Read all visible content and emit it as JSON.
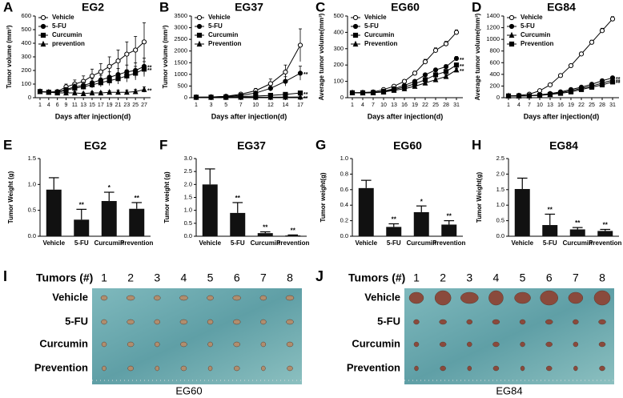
{
  "chart_data": [
    {
      "type": "line",
      "panel": "A",
      "title": "EG2",
      "xlabel": "Days after injection(d)",
      "ylabel": "Tumor volume (mm³)",
      "categories": [
        "1",
        "4",
        "6",
        "9",
        "11",
        "13",
        "15",
        "17",
        "19",
        "21",
        "23",
        "25",
        "27"
      ],
      "ylim": [
        0,
        600
      ],
      "yticks": [
        0,
        100,
        200,
        300,
        400,
        500,
        600
      ],
      "series": [
        {
          "name": "Vehicle",
          "marker": "circle-open",
          "color": "#000",
          "values": [
            45,
            42,
            45,
            80,
            100,
            120,
            160,
            190,
            230,
            270,
            320,
            350,
            410
          ],
          "errors": [
            10,
            10,
            10,
            20,
            30,
            40,
            50,
            60,
            70,
            80,
            90,
            100,
            140
          ]
        },
        {
          "name": "5-FU",
          "marker": "circle",
          "color": "#000",
          "values": [
            45,
            40,
            42,
            60,
            80,
            90,
            110,
            130,
            150,
            170,
            190,
            200,
            230
          ],
          "errors": [
            10,
            10,
            10,
            15,
            20,
            25,
            30,
            35,
            40,
            45,
            50,
            55,
            60
          ],
          "annotation": "**"
        },
        {
          "name": "Curcumin",
          "marker": "square",
          "color": "#000",
          "values": [
            45,
            40,
            40,
            55,
            70,
            80,
            95,
            110,
            125,
            140,
            160,
            180,
            210
          ],
          "errors": [
            10,
            10,
            10,
            15,
            15,
            20,
            25,
            30,
            35,
            40,
            45,
            50,
            55
          ],
          "annotation": "**"
        },
        {
          "name": "prevention",
          "marker": "triangle",
          "color": "#000",
          "values": [
            45,
            40,
            35,
            35,
            35,
            30,
            35,
            35,
            40,
            40,
            40,
            45,
            60
          ],
          "errors": [
            10,
            10,
            10,
            10,
            10,
            10,
            10,
            10,
            10,
            15,
            15,
            15,
            20
          ],
          "annotation": "**"
        }
      ]
    },
    {
      "type": "line",
      "panel": "B",
      "title": "EG37",
      "xlabel": "Days after injection(d)",
      "ylabel": "Tumor volume (mm³)",
      "categories": [
        "1",
        "3",
        "5",
        "7",
        "10",
        "12",
        "14",
        "17"
      ],
      "ylim": [
        0,
        3500
      ],
      "yticks": [
        0,
        500,
        1000,
        1500,
        2000,
        2500,
        3000,
        3500
      ],
      "series": [
        {
          "name": "Vehicle",
          "marker": "circle-open",
          "color": "#000",
          "values": [
            20,
            30,
            60,
            150,
            300,
            600,
            1100,
            2250
          ],
          "errors": [
            5,
            10,
            20,
            50,
            100,
            200,
            300,
            700
          ]
        },
        {
          "name": "5-FU",
          "marker": "circle",
          "color": "#000",
          "values": [
            20,
            25,
            50,
            100,
            200,
            400,
            700,
            1050
          ],
          "errors": [
            5,
            10,
            15,
            30,
            60,
            120,
            200,
            300
          ],
          "annotation": "**"
        },
        {
          "name": "Curcumin",
          "marker": "square",
          "color": "#000",
          "values": [
            20,
            20,
            30,
            50,
            70,
            100,
            140,
            200
          ],
          "errors": [
            5,
            5,
            10,
            15,
            20,
            30,
            40,
            60
          ],
          "annotation": "**"
        },
        {
          "name": "Prevention",
          "marker": "triangle",
          "color": "#000",
          "values": [
            15,
            15,
            15,
            20,
            20,
            20,
            25,
            30
          ],
          "errors": [
            5,
            5,
            5,
            5,
            5,
            5,
            10,
            10
          ],
          "annotation": "**"
        }
      ]
    },
    {
      "type": "line",
      "panel": "C",
      "title": "EG60",
      "xlabel": "Days after injection(d)",
      "ylabel": "Average tumor volume(mm³)",
      "categories": [
        "1",
        "4",
        "7",
        "10",
        "13",
        "16",
        "19",
        "22",
        "25",
        "28",
        "31"
      ],
      "ylim": [
        0,
        500
      ],
      "yticks": [
        0,
        100,
        200,
        300,
        400,
        500
      ],
      "series": [
        {
          "name": "Vehicle",
          "marker": "circle-open",
          "color": "#000",
          "values": [
            30,
            32,
            35,
            50,
            70,
            100,
            150,
            220,
            290,
            330,
            400
          ],
          "errors": [
            3,
            3,
            4,
            5,
            8,
            10,
            12,
            15,
            15,
            15,
            15
          ]
        },
        {
          "name": "5-FU",
          "marker": "circle",
          "color": "#000",
          "values": [
            30,
            30,
            32,
            40,
            55,
            75,
            100,
            140,
            170,
            190,
            240
          ],
          "errors": [
            3,
            3,
            3,
            4,
            5,
            6,
            8,
            10,
            10,
            12,
            12
          ],
          "annotation": "**"
        },
        {
          "name": "Curcumin",
          "marker": "square",
          "color": "#000",
          "values": [
            30,
            30,
            31,
            38,
            50,
            65,
            85,
            110,
            140,
            160,
            200
          ],
          "errors": [
            3,
            3,
            3,
            4,
            5,
            6,
            7,
            8,
            10,
            10,
            12
          ],
          "annotation": "**"
        },
        {
          "name": "Prevention",
          "marker": "triangle",
          "color": "#000",
          "values": [
            30,
            29,
            30,
            35,
            45,
            55,
            70,
            90,
            110,
            130,
            170
          ],
          "errors": [
            3,
            3,
            3,
            4,
            4,
            5,
            6,
            7,
            8,
            10,
            10
          ],
          "annotation": "**"
        }
      ]
    },
    {
      "type": "line",
      "panel": "D",
      "title": "EG84",
      "xlabel": "Days after injection(d)",
      "ylabel": "Average tumor volume(mm³)",
      "categories": [
        "1",
        "4",
        "7",
        "10",
        "13",
        "16",
        "19",
        "22",
        "25",
        "28",
        "31"
      ],
      "ylim": [
        0,
        1400
      ],
      "yticks": [
        0,
        200,
        400,
        600,
        800,
        1000,
        1200,
        1400
      ],
      "series": [
        {
          "name": "Vehicle",
          "marker": "circle-open",
          "color": "#000",
          "values": [
            30,
            40,
            60,
            120,
            220,
            380,
            550,
            750,
            950,
            1150,
            1350
          ],
          "errors": [
            5,
            5,
            8,
            10,
            15,
            20,
            25,
            30,
            35,
            40,
            40
          ]
        },
        {
          "name": "5-FU",
          "marker": "circle",
          "color": "#000",
          "values": [
            30,
            32,
            35,
            50,
            70,
            100,
            140,
            180,
            230,
            290,
            340
          ],
          "errors": [
            5,
            5,
            5,
            8,
            10,
            12,
            15,
            18,
            20,
            22,
            25
          ],
          "annotation": "**"
        },
        {
          "name": "Curcumin",
          "marker": "triangle",
          "color": "#000",
          "values": [
            30,
            30,
            33,
            45,
            60,
            85,
            120,
            160,
            200,
            250,
            300
          ],
          "errors": [
            5,
            5,
            5,
            6,
            8,
            10,
            12,
            15,
            18,
            20,
            22
          ],
          "annotation": "**"
        },
        {
          "name": "Prevention",
          "marker": "square",
          "color": "#000",
          "values": [
            30,
            30,
            32,
            40,
            55,
            75,
            100,
            140,
            180,
            220,
            270
          ],
          "errors": [
            5,
            5,
            5,
            6,
            7,
            9,
            10,
            12,
            15,
            18,
            20
          ],
          "annotation": "**"
        }
      ]
    },
    {
      "type": "bar",
      "panel": "E",
      "title": "EG2",
      "ylabel": "Tumor Weight (g)",
      "color": "#111",
      "categories": [
        "Vehicle",
        "5-FU",
        "Curcumin",
        "Prevention"
      ],
      "values": [
        0.9,
        0.32,
        0.68,
        0.53
      ],
      "errors": [
        0.23,
        0.2,
        0.17,
        0.12
      ],
      "annotations": [
        null,
        "**",
        "*",
        "**"
      ],
      "ylim": [
        0,
        1.5
      ],
      "yticks": [
        {
          "value": 0,
          "label": "0.0"
        },
        0.5,
        {
          "value": 1,
          "label": "1.0"
        },
        1.5
      ]
    },
    {
      "type": "bar",
      "panel": "F",
      "title": "EG37",
      "ylabel": "Tumor weight (g)",
      "color": "#111",
      "categories": [
        "Vehicle",
        "5-FU",
        "Curcumin",
        "Prevention"
      ],
      "values": [
        2.0,
        0.9,
        0.12,
        0.03
      ],
      "errors": [
        0.6,
        0.4,
        0.05,
        0.02
      ],
      "annotations": [
        null,
        "**",
        "**",
        "**"
      ],
      "ylim": [
        0,
        3
      ],
      "yticks": [
        {
          "value": 0,
          "label": "0.0"
        },
        0.5,
        {
          "value": 1,
          "label": "1.0"
        },
        1.5,
        {
          "value": 2,
          "label": "2.0"
        },
        2.5,
        {
          "value": 3,
          "label": "3.0"
        }
      ]
    },
    {
      "type": "bar",
      "panel": "G",
      "title": "EG60",
      "ylabel": "Tumor weight(g)",
      "color": "#111",
      "categories": [
        "Vehicle",
        "5-FU",
        "Curcumin",
        "Prevention"
      ],
      "values": [
        0.62,
        0.12,
        0.31,
        0.15
      ],
      "errors": [
        0.1,
        0.04,
        0.08,
        0.05
      ],
      "annotations": [
        null,
        "**",
        "*",
        "**"
      ],
      "ylim": [
        0,
        1
      ],
      "yticks": [
        {
          "value": 0,
          "label": "0.0"
        },
        0.2,
        0.4,
        0.6,
        0.8,
        {
          "value": 1,
          "label": "1.0"
        }
      ]
    },
    {
      "type": "bar",
      "panel": "H",
      "title": "EG84",
      "ylabel": "Tumor Weight(g)",
      "color": "#111",
      "categories": [
        "Vehicle",
        "5-FU",
        "Curcumin",
        "Prevention"
      ],
      "values": [
        1.52,
        0.36,
        0.22,
        0.17
      ],
      "errors": [
        0.35,
        0.35,
        0.06,
        0.05
      ],
      "annotations": [
        null,
        "**",
        "**",
        "**"
      ],
      "ylim": [
        0,
        2.5
      ],
      "yticks": [
        {
          "value": 0,
          "label": "0.0"
        },
        0.5,
        {
          "value": 1,
          "label": "1.0"
        },
        1.5,
        {
          "value": 2,
          "label": "2.0"
        },
        2.5
      ]
    }
  ],
  "photo_panels": [
    {
      "panel": "I",
      "header": "Tumors (#)",
      "columns": [
        "1",
        "2",
        "3",
        "4",
        "5",
        "6",
        "7",
        "8"
      ],
      "rows": [
        "Vehicle",
        "5-FU",
        "Curcumin",
        "Prevention"
      ],
      "caption": "EG60"
    },
    {
      "panel": "J",
      "header": "Tumors (#)",
      "columns": [
        "1",
        "2",
        "3",
        "4",
        "5",
        "6",
        "7",
        "8"
      ],
      "rows": [
        "Vehicle",
        "5-FU",
        "Curcumin",
        "Prevention"
      ],
      "caption": "EG84"
    }
  ]
}
